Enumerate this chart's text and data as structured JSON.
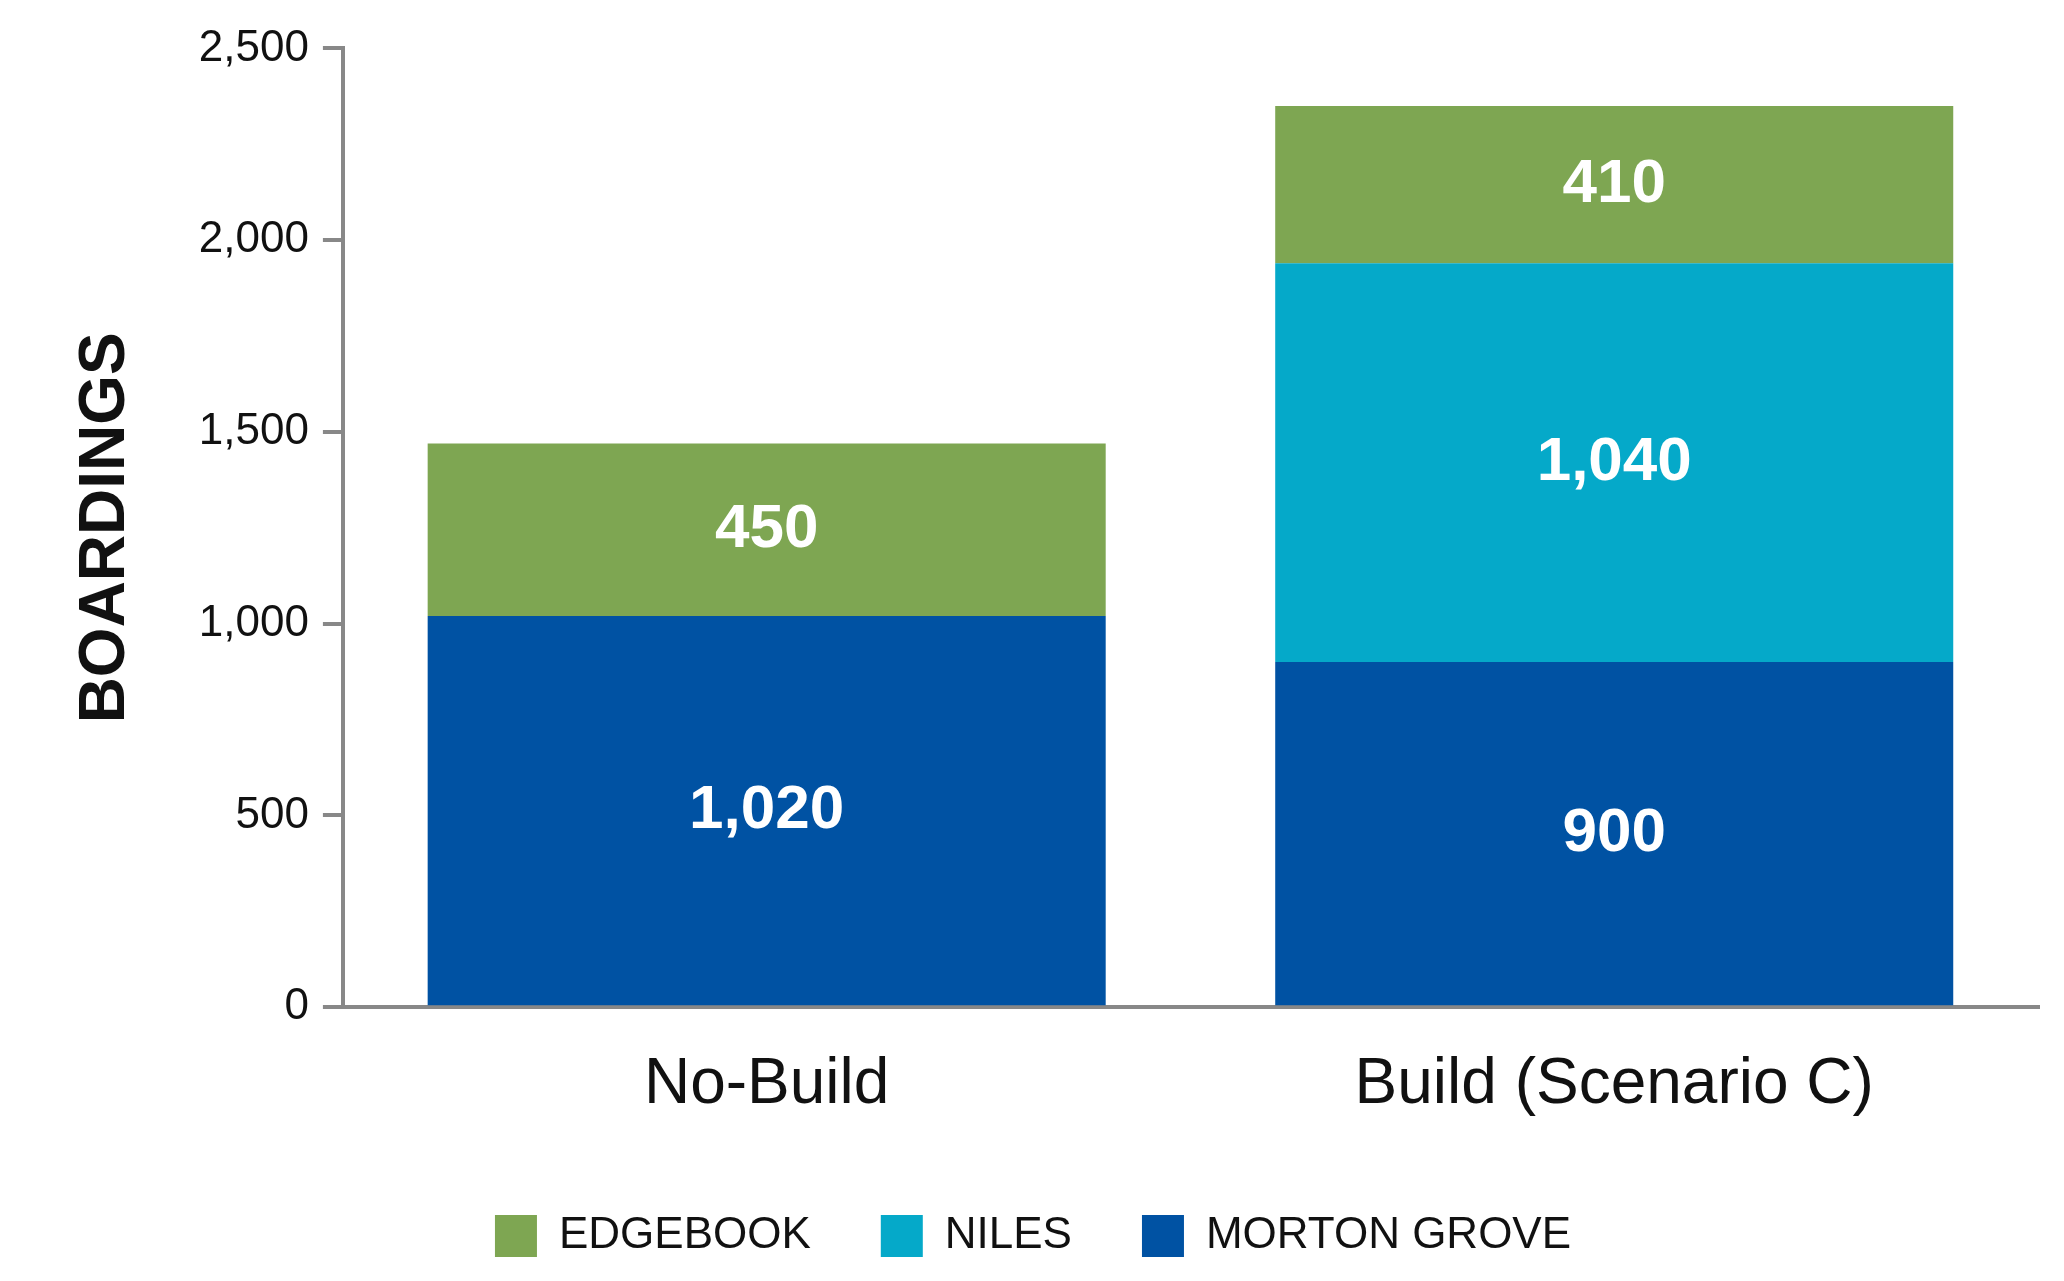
{
  "chart_data": {
    "type": "bar",
    "stacked": true,
    "ylabel": "BOARDINGS",
    "categories": [
      "No-Build",
      "Build (Scenario C)"
    ],
    "series": [
      {
        "name": "MORTON GROVE",
        "color": "#0052a3",
        "values": [
          1020,
          900
        ],
        "value_labels": [
          "1,020",
          "900"
        ]
      },
      {
        "name": "NILES",
        "color": "#05a9c9",
        "values": [
          null,
          1040
        ],
        "value_labels": [
          null,
          "1,040"
        ]
      },
      {
        "name": "EDGEBOOK",
        "color": "#7ea652",
        "values": [
          450,
          410
        ],
        "value_labels": [
          "450",
          "410"
        ]
      }
    ],
    "ylim": [
      0,
      2500
    ],
    "yticks": [
      0,
      500,
      {
        "value": 1000,
        "label": "1,000"
      },
      {
        "value": 1500,
        "label": "1,500"
      },
      {
        "value": 2000,
        "label": "2,000"
      },
      {
        "value": 2500,
        "label": "2,500"
      }
    ],
    "legend": "bottom",
    "grid": false
  }
}
